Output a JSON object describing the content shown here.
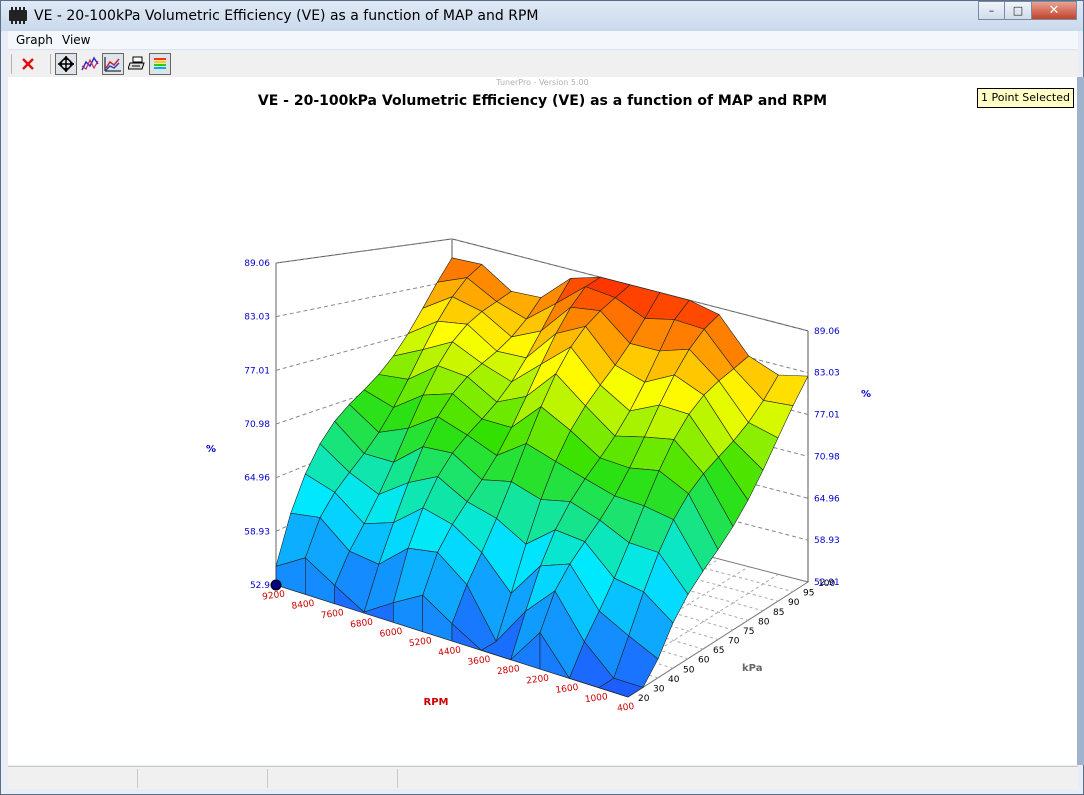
{
  "window": {
    "title": "VE - 20-100kPa Volumetric Efficiency (VE) as a function of MAP and RPM",
    "minimize_glyph": "–",
    "maximize_glyph": "□",
    "close_glyph": "✕"
  },
  "menu": {
    "items": [
      "Graph",
      "View"
    ]
  },
  "toolbar": {
    "buttons": [
      {
        "icon": "close-red-x-icon",
        "pressed": false
      },
      {
        "icon": "rotate-crosshair-icon",
        "pressed": true
      },
      {
        "icon": "line-plot-icon",
        "pressed": false
      },
      {
        "icon": "surface-graph-icon",
        "pressed": true
      },
      {
        "icon": "print-icon",
        "pressed": false
      },
      {
        "icon": "color-legend-icon",
        "pressed": false
      }
    ]
  },
  "graph": {
    "version_text": "TunerPro - Version 5.00",
    "title": "VE - 20-100kPa Volumetric Efficiency (VE) as a function of MAP and RPM",
    "selection_label": "1 Point Selected",
    "left_axis_unit": "%",
    "right_axis_unit": "%",
    "left_ticks": [
      "52.9",
      "58.93",
      "64.96",
      "70.98",
      "77.01",
      "83.03",
      "89.06"
    ],
    "right_ticks": [
      "52.91",
      "58.93",
      "64.96",
      "70.98",
      "77.01",
      "83.03",
      "89.06"
    ],
    "rpm_label": "RPM",
    "rpm_ticks": [
      "9200",
      "8400",
      "7600",
      "6800",
      "6000",
      "5200",
      "4400",
      "3600",
      "2800",
      "2200",
      "1600",
      "1000",
      "400"
    ],
    "kpa_label": "kPa",
    "kpa_ticks": [
      "20",
      "30",
      "40",
      "50",
      "60",
      "65",
      "70",
      "75",
      "80",
      "85",
      "90",
      "95",
      "100"
    ],
    "colors": {
      "low": "#1e5dff",
      "mid_low": "#00e8ff",
      "mid": "#2fe000",
      "mid_high": "#ffff00",
      "high": "#ff2a00",
      "axis_tick": "#0000cc",
      "rpm_tick": "#cc0000",
      "kpa_tick": "#000000"
    }
  },
  "status": {
    "cells": [
      "",
      "",
      "",
      ""
    ]
  }
}
